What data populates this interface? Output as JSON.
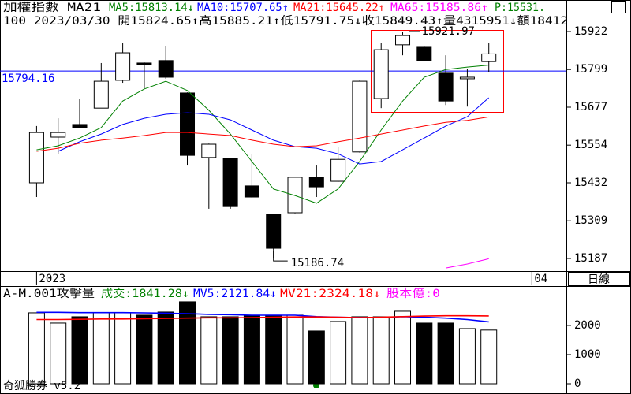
{
  "ui": {
    "period": "日線",
    "footer": "奇狐勝券 v5.2"
  },
  "chart_data": [
    {
      "type": "candlestick",
      "header": [
        {
          "text": "加權指數 MA21",
          "color": "#000000"
        },
        {
          "text": "MA5:15813.14↓",
          "color": "#008000"
        },
        {
          "text": "MA10:15707.65↑",
          "color": "#0000ff"
        },
        {
          "text": "MA21:15645.22↑",
          "color": "#ff0000"
        },
        {
          "text": "MA65:15185.86↑",
          "color": "#ff00ff"
        },
        {
          "text": "P:15531.",
          "color": "#008000"
        }
      ],
      "info": "100 2023/03/30 開15824.65↑高15885.21↑低15791.75↓收15849.43↑量4315951↓額18412",
      "x": [
        0,
        1,
        2,
        3,
        4,
        5,
        6,
        7,
        8,
        9,
        10,
        11,
        12,
        13,
        14,
        15,
        16,
        17,
        18,
        19,
        20,
        21
      ],
      "xlim": [
        -1.7,
        24.6
      ],
      "xticks": [
        {
          "value": 0,
          "label": "2023"
        },
        {
          "value": 23,
          "label": "04"
        }
      ],
      "open": [
        15432,
        15580,
        15621,
        15674,
        15764,
        15820,
        15828,
        15723,
        15514,
        15511,
        15422,
        15330,
        15335,
        15450,
        15437,
        15532,
        15705,
        15879,
        15871,
        15787,
        15769,
        15824.65
      ],
      "high": [
        15616,
        15641,
        15705,
        15820,
        15884,
        15822,
        15876,
        15725,
        15559,
        15513,
        15526,
        15332,
        15452,
        15488,
        15547,
        15763,
        15884,
        15921.97,
        15873,
        15845,
        15802,
        15885.21
      ],
      "low": [
        15386,
        15526,
        15611,
        15674,
        15756,
        15738,
        15769,
        15488,
        15348,
        15348,
        15384,
        15186.74,
        15333,
        15386,
        15435,
        15530,
        15674,
        15845,
        15826,
        15684,
        15679,
        15791.75
      ],
      "close": [
        15595,
        15595,
        15611,
        15761,
        15853,
        15815,
        15774,
        15521,
        15557,
        15355,
        15386,
        15220,
        15450,
        15419,
        15508,
        15761,
        15863,
        15909,
        15828,
        15697,
        15774,
        15849.43
      ],
      "series": [
        {
          "color": "#008000",
          "values": [
            15539,
            15552,
            15577,
            15611,
            15697,
            15736,
            15761,
            15731,
            15667,
            15590,
            15501,
            15412,
            15391,
            15366,
            15412,
            15501,
            15603,
            15697,
            15774,
            15799,
            15807,
            15813.14
          ]
        },
        {
          "color": "#0000ff",
          "values": [
            null,
            15534,
            15565,
            15590,
            15621,
            15641,
            15654,
            15659,
            15654,
            15636,
            15603,
            15570,
            15549,
            15544,
            15526,
            15493,
            15501,
            15539,
            15577,
            15616,
            15646,
            15707.65
          ]
        },
        {
          "color": "#ff0000",
          "values": [
            15534,
            15544,
            15560,
            15570,
            15577,
            15585,
            15595,
            15595,
            15590,
            15585,
            15570,
            15557,
            15549,
            15552,
            15565,
            15577,
            15590,
            15603,
            15616,
            15628,
            15634,
            15645.22
          ]
        },
        {
          "color": "#ff00ff",
          "values": [
            null,
            null,
            null,
            null,
            null,
            null,
            null,
            null,
            null,
            null,
            null,
            null,
            null,
            null,
            null,
            null,
            null,
            null,
            null,
            15156,
            15169,
            15185.86
          ]
        }
      ],
      "hline": {
        "value": 15794.16,
        "color": "#0000ff"
      },
      "ylim": [
        15143.6,
        15947.5
      ],
      "yticks": [
        15922,
        15799,
        15677,
        15554,
        15432,
        15309,
        15187
      ]
    },
    {
      "type": "bar",
      "header": [
        {
          "text": "A-M.001攻擊量",
          "color": "#000000"
        },
        {
          "text": "成交:1841.28↓",
          "color": "#008000"
        },
        {
          "text": "MV5:2121.84↓",
          "color": "#0000ff"
        },
        {
          "text": "MV21:2324.18↓",
          "color": "#ff0000"
        },
        {
          "text": "股本億:0",
          "color": "#ff00ff"
        }
      ],
      "x": [
        0,
        1,
        2,
        3,
        4,
        5,
        6,
        7,
        8,
        9,
        10,
        11,
        12,
        13,
        14,
        15,
        16,
        17,
        18,
        19,
        20,
        21
      ],
      "xlim": [
        -1.7,
        24.6
      ],
      "values": [
        2432,
        2081,
        2297,
        2432,
        2432,
        2351,
        2459,
        2811,
        2297,
        2297,
        2351,
        2351,
        2351,
        1811,
        2135,
        2297,
        2297,
        2486,
        2081,
        2081,
        1892,
        1841.28
      ],
      "series": [
        {
          "color": "#0000ff",
          "values": [
            2450,
            2450,
            2440,
            2440,
            2440,
            2430,
            2420,
            2400,
            2380,
            2370,
            2350,
            2350,
            2350,
            2300,
            2280,
            2270,
            2270,
            2300,
            2280,
            2250,
            2200,
            2121.84
          ]
        },
        {
          "color": "#ff0000",
          "values": [
            2200,
            2200,
            2210,
            2220,
            2220,
            2230,
            2240,
            2250,
            2260,
            2260,
            2270,
            2280,
            2290,
            2290,
            2280,
            2270,
            2280,
            2300,
            2320,
            2330,
            2330,
            2324.18
          ]
        }
      ],
      "ylim": [
        -270,
        2890
      ],
      "yticks": [
        0,
        1000,
        2000
      ]
    }
  ]
}
